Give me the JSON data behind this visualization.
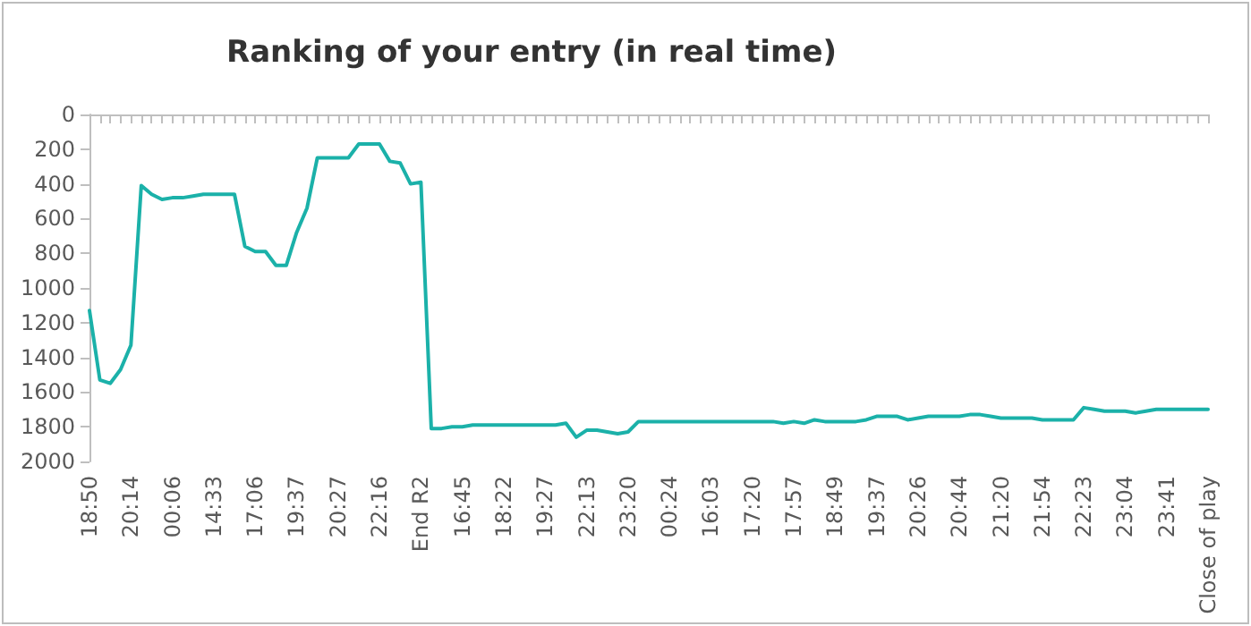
{
  "chart_data": {
    "type": "line",
    "title": "Ranking of your entry (in real time)",
    "categories": [
      "18:50",
      null,
      null,
      null,
      "20:14",
      null,
      null,
      null,
      "00:06",
      null,
      null,
      null,
      "14:33",
      null,
      null,
      null,
      "17:06",
      null,
      null,
      null,
      "19:37",
      null,
      null,
      null,
      "20:27",
      null,
      null,
      null,
      "22:16",
      null,
      null,
      null,
      "End R2",
      null,
      null,
      null,
      "16:45",
      null,
      null,
      null,
      "18:22",
      null,
      null,
      null,
      "19:27",
      null,
      null,
      null,
      "22:13",
      null,
      null,
      null,
      "23:20",
      null,
      null,
      null,
      "00:24",
      null,
      null,
      null,
      "16:03",
      null,
      null,
      null,
      "17:20",
      null,
      null,
      null,
      "17:57",
      null,
      null,
      null,
      "18:49",
      null,
      null,
      null,
      "19:37",
      null,
      null,
      null,
      "20:26",
      null,
      null,
      null,
      "20:44",
      null,
      null,
      null,
      "21:20",
      null,
      null,
      null,
      "21:54",
      null,
      null,
      null,
      "22:23",
      null,
      null,
      null,
      "23:04",
      null,
      null,
      null,
      "23:41",
      null,
      null,
      null,
      "Close of play"
    ],
    "series": [
      {
        "color": "#1bb1a9",
        "values": [
          1130,
          1530,
          1550,
          1470,
          1330,
          410,
          460,
          490,
          480,
          480,
          470,
          460,
          460,
          460,
          460,
          760,
          790,
          790,
          870,
          870,
          680,
          540,
          250,
          250,
          250,
          250,
          170,
          170,
          170,
          270,
          280,
          400,
          390,
          1810,
          1810,
          1800,
          1800,
          1790,
          1790,
          1790,
          1790,
          1790,
          1790,
          1790,
          1790,
          1790,
          1780,
          1860,
          1820,
          1820,
          1830,
          1840,
          1830,
          1770,
          1770,
          1770,
          1770,
          1770,
          1770,
          1770,
          1770,
          1770,
          1770,
          1770,
          1770,
          1770,
          1770,
          1780,
          1770,
          1780,
          1760,
          1770,
          1770,
          1770,
          1770,
          1760,
          1740,
          1740,
          1740,
          1760,
          1750,
          1740,
          1740,
          1740,
          1740,
          1730,
          1730,
          1740,
          1750,
          1750,
          1750,
          1750,
          1760,
          1760,
          1760,
          1760,
          1690,
          1700,
          1710,
          1710,
          1710,
          1720,
          1710,
          1700,
          1700,
          1700,
          1700,
          1700,
          1700
        ]
      }
    ],
    "ylim": [
      2000,
      0
    ],
    "yticks": [
      0,
      200,
      400,
      600,
      800,
      1000,
      1200,
      1400,
      1600,
      1800,
      2000
    ],
    "grid": false,
    "marker": "none",
    "line_style": "solid"
  }
}
